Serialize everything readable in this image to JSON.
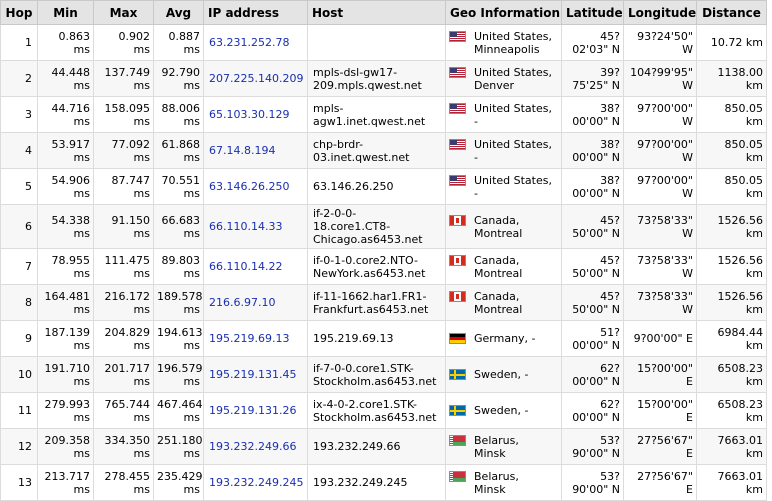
{
  "columns": {
    "hop": "Hop",
    "min": "Min",
    "max": "Max",
    "avg": "Avg",
    "ip": "IP address",
    "host": "Host",
    "geo": "Geo Information",
    "lat": "Latitude",
    "lon": "Longitude",
    "dist": "Distance"
  },
  "icons": {
    "us": "us-flag-icon",
    "ca": "canada-flag-icon",
    "de": "germany-flag-icon",
    "se": "sweden-flag-icon",
    "by": "belarus-flag-icon"
  },
  "rows": [
    {
      "hop": "1",
      "min": "0.863\nms",
      "max": "0.902\nms",
      "avg": "0.887\nms",
      "ip": "63.231.252.78",
      "host": "",
      "flag": "us",
      "geo": "United States,\nMinneapolis",
      "lat": "45?\n02'03\" N",
      "lon": "93?24'50\"\nW",
      "dist": "10.72 km"
    },
    {
      "hop": "2",
      "min": "44.448\nms",
      "max": "137.749\nms",
      "avg": "92.790\nms",
      "ip": "207.225.140.209",
      "host": "mpls-dsl-gw17-\n209.mpls.qwest.net",
      "flag": "us",
      "geo": "United States,\nDenver",
      "lat": "39?\n75'25\" N",
      "lon": "104?99'95\"\nW",
      "dist": "1138.00\nkm"
    },
    {
      "hop": "3",
      "min": "44.716\nms",
      "max": "158.095\nms",
      "avg": "88.006\nms",
      "ip": "65.103.30.129",
      "host": "mpls-\nagw1.inet.qwest.net",
      "flag": "us",
      "geo": "United States,\n-",
      "lat": "38?\n00'00\" N",
      "lon": "97?00'00\"\nW",
      "dist": "850.05\nkm"
    },
    {
      "hop": "4",
      "min": "53.917\nms",
      "max": "77.092\nms",
      "avg": "61.868\nms",
      "ip": "67.14.8.194",
      "host": "chp-brdr-\n03.inet.qwest.net",
      "flag": "us",
      "geo": "United States,\n-",
      "lat": "38?\n00'00\" N",
      "lon": "97?00'00\"\nW",
      "dist": "850.05\nkm"
    },
    {
      "hop": "5",
      "min": "54.906\nms",
      "max": "87.747\nms",
      "avg": "70.551\nms",
      "ip": "63.146.26.250",
      "host": "63.146.26.250",
      "flag": "us",
      "geo": "United States,\n-",
      "lat": "38?\n00'00\" N",
      "lon": "97?00'00\"\nW",
      "dist": "850.05\nkm"
    },
    {
      "hop": "6",
      "min": "54.338\nms",
      "max": "91.150\nms",
      "avg": "66.683\nms",
      "ip": "66.110.14.33",
      "host": "if-2-0-0-\n18.core1.CT8-\nChicago.as6453.net",
      "flag": "ca",
      "geo": "Canada,\nMontreal",
      "lat": "45?\n50'00\" N",
      "lon": "73?58'33\"\nW",
      "dist": "1526.56\nkm"
    },
    {
      "hop": "7",
      "min": "78.955\nms",
      "max": "111.475\nms",
      "avg": "89.803\nms",
      "ip": "66.110.14.22",
      "host": "if-0-1-0.core2.NTO-\nNewYork.as6453.net",
      "flag": "ca",
      "geo": "Canada,\nMontreal",
      "lat": "45?\n50'00\" N",
      "lon": "73?58'33\"\nW",
      "dist": "1526.56\nkm"
    },
    {
      "hop": "8",
      "min": "164.481\nms",
      "max": "216.172\nms",
      "avg": "189.578\nms",
      "ip": "216.6.97.10",
      "host": "if-11-1662.har1.FR1-\nFrankfurt.as6453.net",
      "flag": "ca",
      "geo": "Canada,\nMontreal",
      "lat": "45?\n50'00\" N",
      "lon": "73?58'33\"\nW",
      "dist": "1526.56\nkm"
    },
    {
      "hop": "9",
      "min": "187.139\nms",
      "max": "204.829\nms",
      "avg": "194.613\nms",
      "ip": "195.219.69.13",
      "host": "195.219.69.13",
      "flag": "de",
      "geo": "Germany, -",
      "lat": "51?\n00'00\" N",
      "lon": "9?00'00\" E",
      "dist": "6984.44\nkm"
    },
    {
      "hop": "10",
      "min": "191.710\nms",
      "max": "201.717\nms",
      "avg": "196.579\nms",
      "ip": "195.219.131.45",
      "host": "if-7-0-0.core1.STK-\nStockholm.as6453.net",
      "flag": "se",
      "geo": "Sweden, -",
      "lat": "62?\n00'00\" N",
      "lon": "15?00'00\"\nE",
      "dist": "6508.23\nkm"
    },
    {
      "hop": "11",
      "min": "279.993\nms",
      "max": "765.744\nms",
      "avg": "467.464\nms",
      "ip": "195.219.131.26",
      "host": "ix-4-0-2.core1.STK-\nStockholm.as6453.net",
      "flag": "se",
      "geo": "Sweden, -",
      "lat": "62?\n00'00\" N",
      "lon": "15?00'00\"\nE",
      "dist": "6508.23\nkm"
    },
    {
      "hop": "12",
      "min": "209.358\nms",
      "max": "334.350\nms",
      "avg": "251.180\nms",
      "ip": "193.232.249.66",
      "host": "193.232.249.66",
      "flag": "by",
      "geo": "Belarus,\nMinsk",
      "lat": "53?\n90'00\" N",
      "lon": "27?56'67\"\nE",
      "dist": "7663.01\nkm"
    },
    {
      "hop": "13",
      "min": "213.717\nms",
      "max": "278.455\nms",
      "avg": "235.429\nms",
      "ip": "193.232.249.245",
      "host": "193.232.249.245",
      "flag": "by",
      "geo": "Belarus,\nMinsk",
      "lat": "53?\n90'00\" N",
      "lon": "27?56'67\"\nE",
      "dist": "7663.01\nkm"
    }
  ]
}
